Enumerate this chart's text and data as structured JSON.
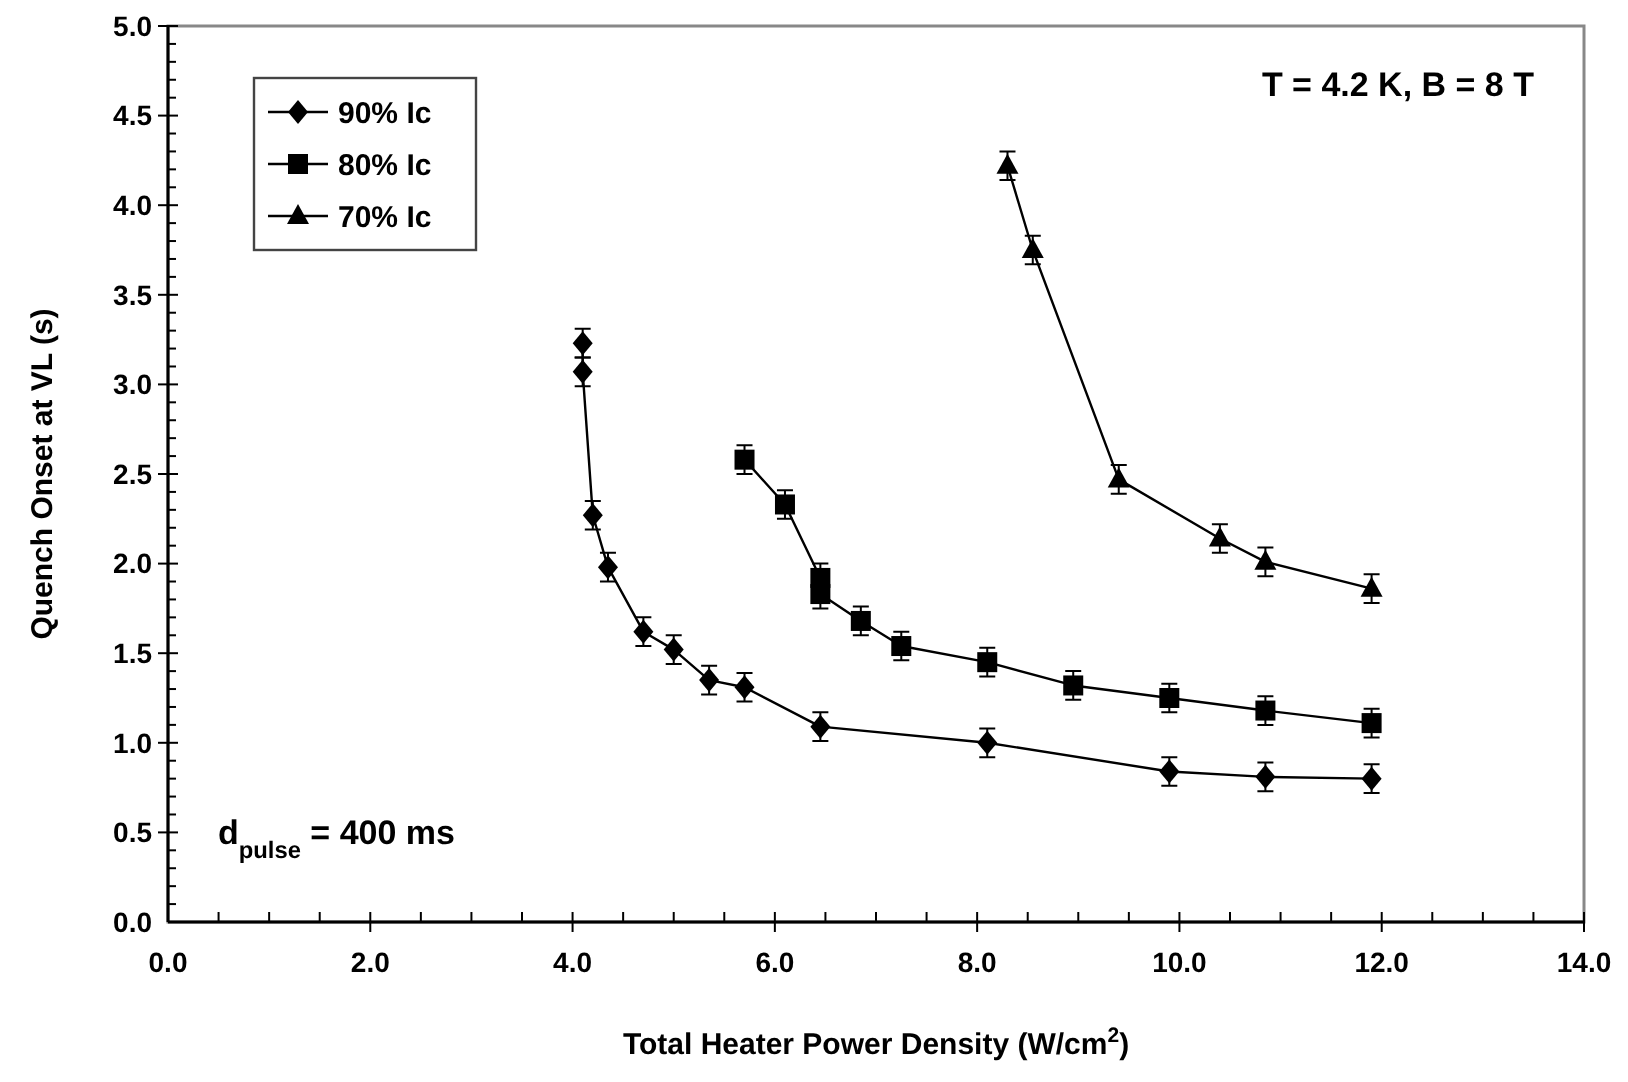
{
  "chart_data": {
    "type": "line",
    "xlabel": "Total Heater Power Density (W/cm$^{2}$)",
    "ylabel": "Quench Onset at VL (s)",
    "annotations": [
      "T = 4.2 K, B = 8 T",
      "d$_{pulse}$ = 400 ms"
    ],
    "xlim": [
      0,
      14
    ],
    "ylim": [
      0,
      5
    ],
    "xticks": [
      {
        "value": 0,
        "label": "0.0"
      },
      {
        "value": 0.5,
        "label": null
      },
      {
        "value": 1,
        "label": null
      },
      {
        "value": 1.5,
        "label": null
      },
      {
        "value": 2,
        "label": "2.0"
      },
      {
        "value": 2.5,
        "label": null
      },
      {
        "value": 3,
        "label": null
      },
      {
        "value": 3.5,
        "label": null
      },
      {
        "value": 4,
        "label": "4.0"
      },
      {
        "value": 4.5,
        "label": null
      },
      {
        "value": 5,
        "label": null
      },
      {
        "value": 5.5,
        "label": null
      },
      {
        "value": 6,
        "label": "6.0"
      },
      {
        "value": 6.5,
        "label": null
      },
      {
        "value": 7,
        "label": null
      },
      {
        "value": 7.5,
        "label": null
      },
      {
        "value": 8,
        "label": "8.0"
      },
      {
        "value": 8.5,
        "label": null
      },
      {
        "value": 9,
        "label": null
      },
      {
        "value": 9.5,
        "label": null
      },
      {
        "value": 10,
        "label": "10.0"
      },
      {
        "value": 10.5,
        "label": null
      },
      {
        "value": 11,
        "label": null
      },
      {
        "value": 11.5,
        "label": null
      },
      {
        "value": 12,
        "label": "12.0"
      },
      {
        "value": 12.5,
        "label": null
      },
      {
        "value": 13,
        "label": null
      },
      {
        "value": 13.5,
        "label": null
      },
      {
        "value": 14,
        "label": "14.0"
      }
    ],
    "yticks": [
      {
        "value": 0,
        "label": "0.0"
      },
      {
        "value": 0.5,
        "label": "0.5"
      },
      {
        "value": 1,
        "label": "1.0"
      },
      {
        "value": 1.5,
        "label": "1.5"
      },
      {
        "value": 2,
        "label": "2.0"
      },
      {
        "value": 2.5,
        "label": "2.5"
      },
      {
        "value": 3,
        "label": "3.0"
      },
      {
        "value": 3.5,
        "label": "3.5"
      },
      {
        "value": 4,
        "label": "4.0"
      },
      {
        "value": 4.5,
        "label": "4.5"
      },
      {
        "value": 5,
        "label": "5.0"
      }
    ],
    "grid": false,
    "legend": "top left",
    "series": [
      {
        "name": "90% Ic",
        "color": "#000000",
        "marker": "diamond",
        "x": [
          4.1,
          4.1,
          4.2,
          4.35,
          4.7,
          5.0,
          5.35,
          5.7,
          6.45,
          8.1,
          9.9,
          10.85,
          11.9
        ],
        "values": [
          3.23,
          3.07,
          2.27,
          1.98,
          1.62,
          1.52,
          1.35,
          1.31,
          1.09,
          1.0,
          0.84,
          0.81,
          0.8
        ],
        "errors": [
          0.08,
          0.08,
          0.08,
          0.08,
          0.08,
          0.08,
          0.08,
          0.08,
          0.08,
          0.08,
          0.08,
          0.08,
          0.08
        ]
      },
      {
        "name": "80% Ic",
        "color": "#000000",
        "marker": "square",
        "x": [
          5.7,
          6.1,
          6.45,
          6.45,
          6.85,
          7.25,
          8.1,
          8.95,
          9.9,
          10.85,
          11.9
        ],
        "values": [
          2.58,
          2.33,
          1.92,
          1.83,
          1.68,
          1.54,
          1.45,
          1.32,
          1.25,
          1.18,
          1.11
        ],
        "errors": [
          0.08,
          0.08,
          0.08,
          0.08,
          0.08,
          0.08,
          0.08,
          0.08,
          0.08,
          0.08,
          0.08
        ]
      },
      {
        "name": "70% Ic",
        "color": "#000000",
        "marker": "triangle",
        "x": [
          8.3,
          8.55,
          9.4,
          10.4,
          10.85,
          11.9
        ],
        "values": [
          4.22,
          3.75,
          2.47,
          2.14,
          2.01,
          1.86
        ],
        "errors": [
          0.08,
          0.08,
          0.08,
          0.08,
          0.08,
          0.08
        ]
      }
    ]
  }
}
